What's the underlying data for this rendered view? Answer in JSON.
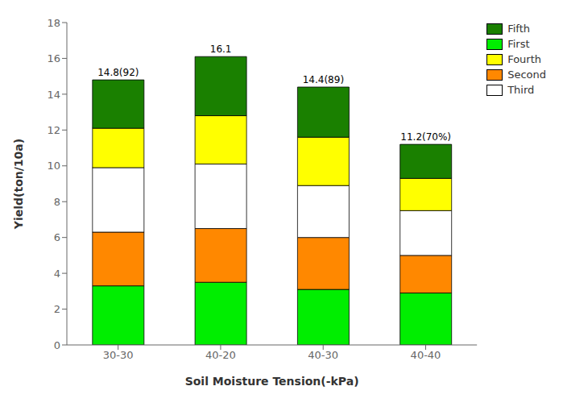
{
  "chart_data": {
    "type": "bar",
    "stacked": true,
    "categories": [
      "30-30",
      "40-20",
      "40-30",
      "40-40"
    ],
    "series": [
      {
        "name": "First",
        "color": "#00ee00",
        "values": [
          3.3,
          3.5,
          3.1,
          2.9
        ]
      },
      {
        "name": "Second",
        "color": "#ff8800",
        "values": [
          3.0,
          3.0,
          2.9,
          2.1
        ]
      },
      {
        "name": "Third",
        "color": "#ffffff",
        "values": [
          3.6,
          3.6,
          2.9,
          2.5
        ]
      },
      {
        "name": "Fourth",
        "color": "#ffff00",
        "values": [
          2.2,
          2.7,
          2.7,
          1.8
        ]
      },
      {
        "name": "Fifth",
        "color": "#1a8000",
        "values": [
          2.7,
          3.3,
          2.8,
          1.9
        ]
      }
    ],
    "annotations": [
      {
        "x": "30-30",
        "text": "14.8(92)"
      },
      {
        "x": "40-20",
        "text": "16.1"
      },
      {
        "x": "40-30",
        "text": "14.4(89)"
      },
      {
        "x": "40-40",
        "text": "11.2(70%)"
      }
    ],
    "xlabel": "Soil  Moisture Tension(-kPa)",
    "ylabel": "Yield(ton/10a)",
    "ylim": [
      0,
      18
    ],
    "yticks": [
      0,
      2,
      4,
      6,
      8,
      10,
      12,
      14,
      16,
      18
    ],
    "grid": false,
    "legend": "upper right"
  }
}
